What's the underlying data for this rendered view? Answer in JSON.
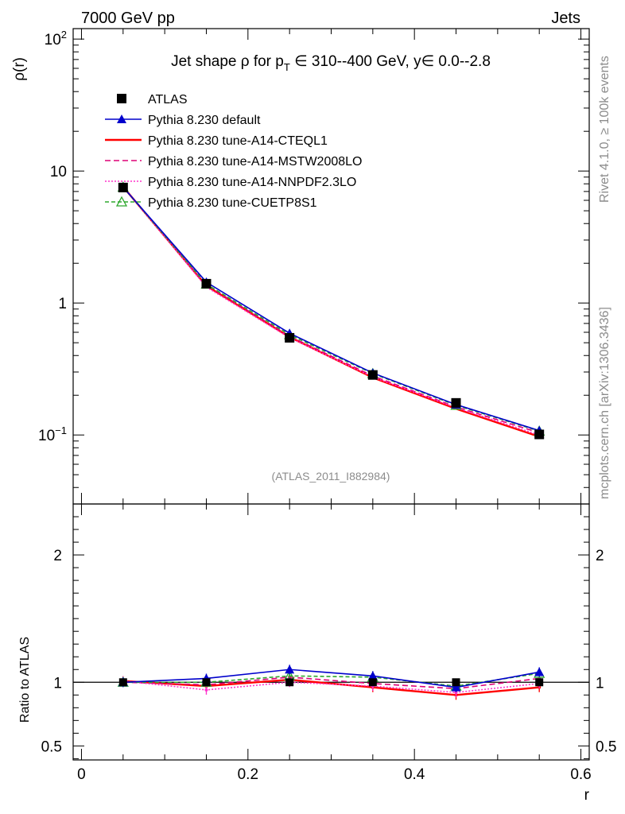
{
  "header": {
    "left": "7000 GeV pp",
    "right": "Jets"
  },
  "side_text": {
    "rivet": "Rivet 4.1.0, ≥ 100k events",
    "mcplots": "mcplots.cern.ch [arXiv:1306.3436]"
  },
  "chart_data": [
    {
      "type": "line",
      "panel": "main",
      "title": "Jet shape ρ for p_T ∈ 310--400 GeV, y∈ 0.0--2.8",
      "title_parts": {
        "pre": "Jet shape ρ for p",
        "sub": "T",
        "post": " ∈ 310--400 GeV, y∈ 0.0--2.8"
      },
      "ylabel": "ρ(r)",
      "xlabel": "r",
      "yscale": "log",
      "ylim": [
        0.03,
        120
      ],
      "xlim": [
        -0.01,
        0.61
      ],
      "y_ticks": [
        {
          "value": 100,
          "label": "10",
          "sup": "2"
        },
        {
          "value": 10,
          "label": "10",
          "sup": ""
        },
        {
          "value": 1,
          "label": "1",
          "sup": ""
        },
        {
          "value": 0.1,
          "label": "10",
          "sup": "−1"
        }
      ],
      "watermark": "(ATLAS_2011_I882984)",
      "x": [
        0.05,
        0.15,
        0.25,
        0.35,
        0.45,
        0.55
      ],
      "series": [
        {
          "name": "ATLAS",
          "color": "#000000",
          "dash": "",
          "marker": "square",
          "values": [
            7.5,
            1.4,
            0.545,
            0.285,
            0.175,
            0.101
          ]
        },
        {
          "name": "Pythia 8.230 default",
          "color": "#0000cc",
          "dash": "",
          "marker": "triangle",
          "values": [
            7.55,
            1.44,
            0.59,
            0.295,
            0.17,
            0.108
          ]
        },
        {
          "name": "Pythia 8.230 tune-A14-CTEQL1",
          "color": "#ff0000",
          "dash": "",
          "marker": "none",
          "values": [
            7.6,
            1.35,
            0.553,
            0.272,
            0.158,
            0.097
          ]
        },
        {
          "name": "Pythia 8.230 tune-A14-MSTW2008LO",
          "color": "#dd0077",
          "dash": "7,4",
          "marker": "none",
          "values": [
            7.58,
            1.37,
            0.56,
            0.28,
            0.163,
            0.104
          ]
        },
        {
          "name": "Pythia 8.230 tune-A14-NNPDF2.3LO",
          "color": "#ff33cc",
          "dash": "2,2",
          "marker": "none",
          "values": [
            7.6,
            1.32,
            0.545,
            0.275,
            0.161,
            0.1
          ]
        },
        {
          "name": "Pythia 8.230 tune-CUETP8S1",
          "color": "#2ea82e",
          "dash": "5,3",
          "marker": "triangle-open",
          "values": [
            7.55,
            1.39,
            0.575,
            0.292,
            0.168,
            0.107
          ]
        }
      ]
    },
    {
      "type": "line",
      "panel": "ratio",
      "ylabel": "Ratio to ATLAS",
      "xlabel": "r",
      "ylim": [
        0.39,
        2.4
      ],
      "x_ticks": [
        0,
        0.2,
        0.4,
        0.6
      ],
      "x_tick_labels": [
        "0",
        "0.2",
        "0.4",
        "0.6"
      ],
      "y_ticks": [
        0.5,
        1,
        2
      ],
      "y_tick_labels": [
        "0.5",
        "1",
        "2"
      ],
      "x": [
        0.05,
        0.15,
        0.25,
        0.35,
        0.45,
        0.55
      ],
      "series": [
        {
          "name": "ATLAS",
          "color": "#000000",
          "values": [
            1.0,
            1.0,
            1.0,
            1.0,
            1.0,
            1.0
          ]
        },
        {
          "name": "Pythia 8.230 default",
          "color": "#0000cc",
          "values": [
            1.0,
            1.03,
            1.1,
            1.05,
            0.96,
            1.08
          ]
        },
        {
          "name": "Pythia 8.230 tune-A14-CTEQL1",
          "color": "#ff0000",
          "values": [
            1.01,
            0.97,
            1.02,
            0.96,
            0.9,
            0.96
          ]
        },
        {
          "name": "Pythia 8.230 tune-A14-MSTW2008LO",
          "color": "#dd0077",
          "values": [
            1.0,
            0.98,
            1.04,
            0.99,
            0.95,
            1.03
          ]
        },
        {
          "name": "Pythia 8.230 tune-A14-NNPDF2.3LO",
          "color": "#ff33cc",
          "values": [
            1.01,
            0.94,
            1.0,
            0.97,
            0.92,
            0.99
          ]
        },
        {
          "name": "Pythia 8.230 tune-CUETP8S1",
          "color": "#2ea82e",
          "values": [
            1.0,
            1.0,
            1.05,
            1.04,
            0.97,
            1.07
          ]
        }
      ]
    }
  ]
}
